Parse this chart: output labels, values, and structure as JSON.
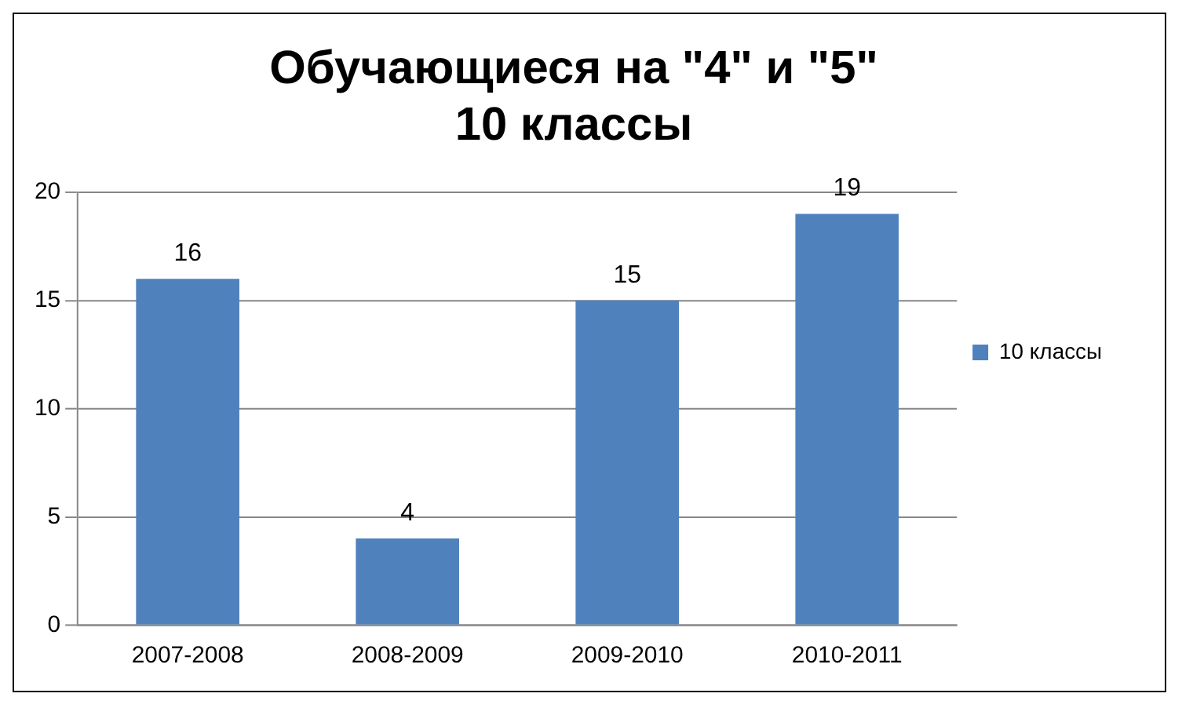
{
  "chart_data": {
    "type": "bar",
    "title": "Обучающиеся на \"4\" и \"5\"\n10 классы",
    "categories": [
      "2007-2008",
      "2008-2009",
      "2009-2010",
      "2010-2011"
    ],
    "series": [
      {
        "name": "10 классы",
        "color": "#4f81bd",
        "values": [
          16,
          4,
          15,
          19
        ]
      }
    ],
    "ylim": [
      0,
      20
    ],
    "yticks": [
      0,
      5,
      10,
      15,
      20
    ],
    "grid": "y",
    "legend": "right",
    "data_labels": true
  }
}
